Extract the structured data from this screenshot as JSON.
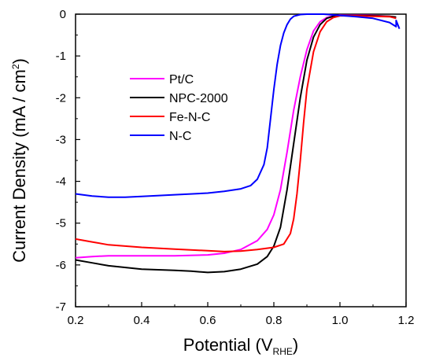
{
  "chart_data": {
    "type": "line",
    "title": "",
    "xlabel": "Potential (V",
    "xlabel_sub": "RHE",
    "xlabel_end": ")",
    "ylabel": "Current Density (mA / cm",
    "ylabel_sup": "2",
    "ylabel_end": ")",
    "xlim": [
      0.2,
      1.2
    ],
    "ylim": [
      -7,
      0
    ],
    "xticks": [
      0.2,
      0.4,
      0.6,
      0.8,
      1.0,
      1.2
    ],
    "xtick_labels": [
      "0.2",
      "0.4",
      "0.6",
      "0.8",
      "1.0",
      "1.2"
    ],
    "yticks": [
      0,
      -1,
      -2,
      -3,
      -4,
      -5,
      -6,
      -7
    ],
    "ytick_labels": [
      "0",
      "-1",
      "-2",
      "-3",
      "-4",
      "-5",
      "-6",
      "-7"
    ],
    "grid": false,
    "legend_position": "upper-left",
    "series": [
      {
        "name": "Pt/C",
        "color": "#ff00ff",
        "x": [
          0.2,
          0.25,
          0.3,
          0.4,
          0.5,
          0.6,
          0.65,
          0.7,
          0.75,
          0.78,
          0.8,
          0.82,
          0.84,
          0.86,
          0.88,
          0.9,
          0.92,
          0.94,
          0.96,
          0.98,
          1.0,
          1.05,
          1.1,
          1.15,
          1.17
        ],
        "y": [
          -5.83,
          -5.8,
          -5.78,
          -5.78,
          -5.78,
          -5.76,
          -5.72,
          -5.63,
          -5.42,
          -5.15,
          -4.8,
          -4.2,
          -3.3,
          -2.3,
          -1.5,
          -0.85,
          -0.4,
          -0.18,
          -0.08,
          -0.04,
          -0.02,
          -0.02,
          -0.03,
          -0.05,
          -0.08
        ]
      },
      {
        "name": "NPC-2000",
        "color": "#000000",
        "x": [
          0.2,
          0.25,
          0.3,
          0.4,
          0.5,
          0.55,
          0.6,
          0.65,
          0.7,
          0.75,
          0.78,
          0.8,
          0.82,
          0.84,
          0.86,
          0.88,
          0.9,
          0.92,
          0.94,
          0.96,
          0.98,
          1.0,
          1.05,
          1.1,
          1.15,
          1.17
        ],
        "y": [
          -5.88,
          -5.95,
          -6.02,
          -6.1,
          -6.13,
          -6.15,
          -6.18,
          -6.16,
          -6.1,
          -5.98,
          -5.8,
          -5.55,
          -5.1,
          -4.2,
          -3.1,
          -2.0,
          -1.1,
          -0.55,
          -0.25,
          -0.1,
          -0.05,
          -0.03,
          -0.03,
          -0.04,
          -0.05,
          -0.07
        ]
      },
      {
        "name": "Fe-N-C",
        "color": "#ff0000",
        "x": [
          0.2,
          0.25,
          0.3,
          0.4,
          0.5,
          0.6,
          0.65,
          0.7,
          0.75,
          0.8,
          0.83,
          0.85,
          0.86,
          0.87,
          0.88,
          0.89,
          0.9,
          0.92,
          0.94,
          0.96,
          0.98,
          1.0,
          1.05,
          1.1,
          1.15,
          1.17
        ],
        "y": [
          -5.38,
          -5.45,
          -5.52,
          -5.58,
          -5.62,
          -5.66,
          -5.68,
          -5.67,
          -5.63,
          -5.58,
          -5.5,
          -5.25,
          -4.9,
          -4.3,
          -3.5,
          -2.6,
          -1.8,
          -0.9,
          -0.42,
          -0.18,
          -0.08,
          -0.04,
          -0.04,
          -0.05,
          -0.06,
          -0.1
        ]
      },
      {
        "name": "N-C",
        "color": "#0000ff",
        "x": [
          0.2,
          0.25,
          0.3,
          0.35,
          0.4,
          0.5,
          0.6,
          0.65,
          0.7,
          0.73,
          0.75,
          0.77,
          0.78,
          0.79,
          0.8,
          0.81,
          0.82,
          0.83,
          0.84,
          0.85,
          0.86,
          0.88,
          0.9,
          0.95,
          1.0,
          1.05,
          1.1,
          1.15,
          1.17,
          1.17,
          1.18
        ],
        "y": [
          -4.3,
          -4.35,
          -4.38,
          -4.38,
          -4.36,
          -4.32,
          -4.28,
          -4.24,
          -4.18,
          -4.1,
          -3.95,
          -3.6,
          -3.2,
          -2.5,
          -1.8,
          -1.2,
          -0.75,
          -0.45,
          -0.25,
          -0.12,
          -0.05,
          -0.01,
          0.0,
          0.0,
          -0.03,
          -0.06,
          -0.1,
          -0.2,
          -0.3,
          -0.15,
          -0.35
        ]
      }
    ]
  }
}
